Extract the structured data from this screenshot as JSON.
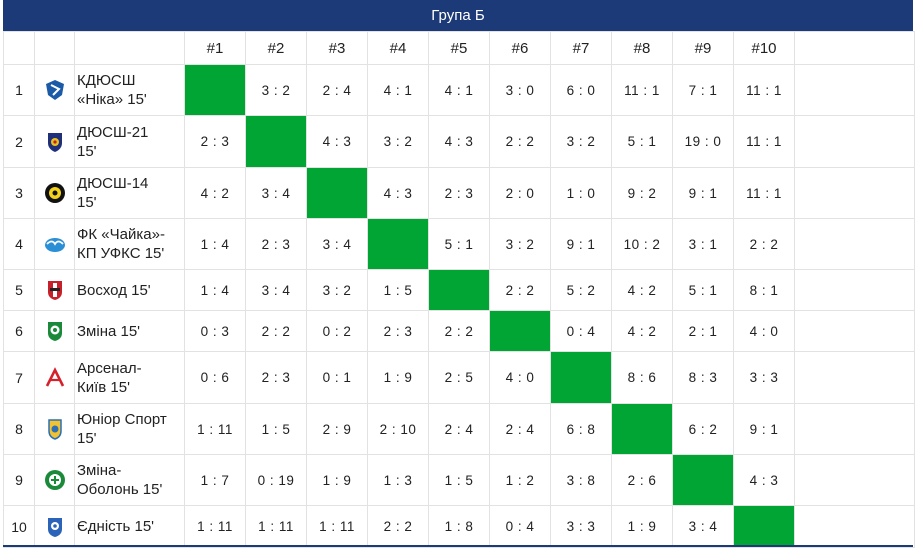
{
  "title": "Група Б",
  "columns": [
    "#1",
    "#2",
    "#3",
    "#4",
    "#5",
    "#6",
    "#7",
    "#8",
    "#9",
    "#10"
  ],
  "colors": {
    "header": "#1d3a78",
    "diagonal": "#00a533"
  },
  "rows": [
    {
      "num": "1",
      "team_line1": "КДЮСШ",
      "team_line2": "«Ніка» 15'",
      "icon": "kdyussh-nika-logo-icon",
      "scores": [
        "",
        "3 : 2",
        "2 : 4",
        "4 : 1",
        "4 : 1",
        "3 : 0",
        "6 : 0",
        "11 : 1",
        "7 : 1",
        "11 : 1"
      ]
    },
    {
      "num": "2",
      "team_line1": "ДЮСШ-21",
      "team_line2": "15'",
      "icon": "dyussh-21-logo-icon",
      "scores": [
        "2 : 3",
        "",
        "4 : 3",
        "3 : 2",
        "4 : 3",
        "2 : 2",
        "3 : 2",
        "5 : 1",
        "19 : 0",
        "11 : 1"
      ]
    },
    {
      "num": "3",
      "team_line1": "ДЮСШ-14",
      "team_line2": "15'",
      "icon": "dyussh-14-logo-icon",
      "scores": [
        "4 : 2",
        "3 : 4",
        "",
        "4 : 3",
        "2 : 3",
        "2 : 0",
        "1 : 0",
        "9 : 2",
        "9 : 1",
        "11 : 1"
      ]
    },
    {
      "num": "4",
      "team_line1": "ФК «Чайка»-",
      "team_line2": "КП УФКС 15'",
      "icon": "fk-chaika-logo-icon",
      "scores": [
        "1 : 4",
        "2 : 3",
        "3 : 4",
        "",
        "5 : 1",
        "3 : 2",
        "9 : 1",
        "10 : 2",
        "3 : 1",
        "2 : 2"
      ]
    },
    {
      "num": "5",
      "team_line1": "Восход 15'",
      "team_line2": "",
      "icon": "voskhod-logo-icon",
      "scores": [
        "1 : 4",
        "3 : 4",
        "3 : 2",
        "1 : 5",
        "",
        "2 : 2",
        "5 : 2",
        "4 : 2",
        "5 : 1",
        "8 : 1"
      ]
    },
    {
      "num": "6",
      "team_line1": "Зміна 15'",
      "team_line2": "",
      "icon": "zmina-logo-icon",
      "scores": [
        "0 : 3",
        "2 : 2",
        "0 : 2",
        "2 : 3",
        "2 : 2",
        "",
        "0 : 4",
        "4 : 2",
        "2 : 1",
        "4 : 0"
      ]
    },
    {
      "num": "7",
      "team_line1": "Арсенал-",
      "team_line2": "Київ 15'",
      "icon": "arsenal-kyiv-logo-icon",
      "scores": [
        "0 : 6",
        "2 : 3",
        "0 : 1",
        "1 : 9",
        "2 : 5",
        "4 : 0",
        "",
        "8 : 6",
        "8 : 3",
        "3 : 3"
      ]
    },
    {
      "num": "8",
      "team_line1": "Юніор Спорт",
      "team_line2": "15'",
      "icon": "junior-sport-logo-icon",
      "scores": [
        "1 : 11",
        "1 : 5",
        "2 : 9",
        "2 : 10",
        "2 : 4",
        "2 : 4",
        "6 : 8",
        "",
        "6 : 2",
        "9 : 1"
      ]
    },
    {
      "num": "9",
      "team_line1": "Зміна-",
      "team_line2": "Оболонь 15'",
      "icon": "zmina-obolon-logo-icon",
      "scores": [
        "1 : 7",
        "0 : 19",
        "1 : 9",
        "1 : 3",
        "1 : 5",
        "1 : 2",
        "3 : 8",
        "2 : 6",
        "",
        "4 : 3"
      ]
    },
    {
      "num": "10",
      "team_line1": "Єдність 15'",
      "team_line2": "",
      "icon": "yednist-logo-icon",
      "scores": [
        "1 : 11",
        "1 : 11",
        "1 : 11",
        "2 : 2",
        "1 : 8",
        "0 : 4",
        "3 : 3",
        "1 : 9",
        "3 : 4",
        ""
      ]
    }
  ]
}
